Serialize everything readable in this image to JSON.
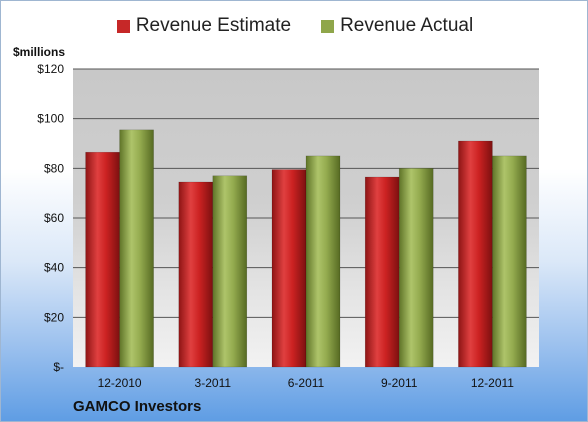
{
  "chart_data": {
    "type": "bar",
    "ylabel": "$millions",
    "categories": [
      "12-2010",
      "3-2011",
      "6-2011",
      "9-2011",
      "12-2011"
    ],
    "ylim": [
      0,
      120
    ],
    "yticks": [
      {
        "value": 0,
        "label": "$-"
      },
      {
        "value": 20,
        "label": "$20"
      },
      {
        "value": 40,
        "label": "$40"
      },
      {
        "value": 60,
        "label": "$60"
      },
      {
        "value": 80,
        "label": "$80"
      },
      {
        "value": 100,
        "label": "$100"
      },
      {
        "value": 120,
        "label": "$120"
      }
    ],
    "grid": true,
    "legend_position": "top",
    "series": [
      {
        "name": "Revenue Estimate",
        "color": "#c62828",
        "values": [
          86.5,
          74.5,
          79.5,
          76.5,
          91
        ]
      },
      {
        "name": "Revenue Actual",
        "color": "#8fa64a",
        "values": [
          95.5,
          77,
          85,
          80,
          85
        ]
      }
    ]
  },
  "footer": {
    "company": "GAMCO Investors"
  }
}
